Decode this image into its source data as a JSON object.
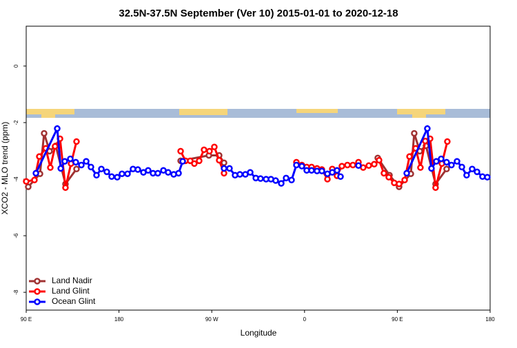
{
  "chart_data": {
    "type": "line",
    "title": "32.5N-37.5N September (Ver 10)   2015-01-01 to 2020-12-18",
    "x_label": "Longitude",
    "y_label": "XCO2 - MLO trend (ppm)",
    "xlim": [
      90,
      540
    ],
    "xticks": [
      {
        "value": 90,
        "label": "90 E"
      },
      180,
      {
        "value": 270,
        "label": "90 W"
      },
      {
        "value": 360,
        "label": "0"
      },
      {
        "value": 450,
        "label": "90 E"
      },
      {
        "value": 540,
        "label": "180"
      }
    ],
    "ylim": [
      -8.63,
      1.41
    ],
    "yticks": [
      0,
      -2,
      -4,
      -6,
      -8
    ],
    "legend": "bottom-left",
    "series": [
      {
        "name": "Land Nadir",
        "color": "#a03232",
        "x": [
          92,
          103.4,
          107.4,
          112.7,
          118.7,
          128.1,
          138.8,
          null,
          239.8,
          267.2,
          277.2,
          281.9,
          null,
          431.0,
          442.4,
          451.7,
          463.1,
          466.4,
          471.8,
          477.8,
          487.1,
          497.8
        ],
        "values": [
          -4.27,
          -3.81,
          -2.38,
          -3.01,
          -2.82,
          -4.17,
          -3.64,
          null,
          -3.35,
          -3.16,
          -3.16,
          -3.42,
          null,
          -3.25,
          -3.86,
          -4.27,
          -3.81,
          -2.38,
          -3.01,
          -2.82,
          -4.17,
          -3.64
        ]
      },
      {
        "name": "Land Glint",
        "color": "#ff0000",
        "x": [
          90,
          98,
          102.7,
          109,
          113.4,
          118,
          122.8,
          128.1,
          133.5,
          138.8,
          null,
          239.8,
          244.5,
          249.1,
          253.1,
          257.8,
          262.5,
          267.8,
          272.5,
          277.2,
          281.9,
          null,
          352.1,
          357.4,
          362.1,
          366.8,
          372.1,
          376.8,
          382.2,
          386.9,
          391.5,
          396.2,
          401.6,
          406.9,
          412.3,
          416.9,
          422.3,
          427.6,
          432.3,
          437.0,
          441.7,
          447.0,
          451.7,
          457.1,
          461.8,
          467.8,
          472.4,
          477.1,
          481.8,
          487.1,
          493.2,
          498.5
        ],
        "values": [
          -4.08,
          -4.03,
          -3.2,
          -2.91,
          -3.59,
          -2.84,
          -2.57,
          -4.3,
          -3.45,
          -2.67,
          null,
          -3.01,
          -3.35,
          -3.35,
          -3.45,
          -3.35,
          -2.96,
          -3.01,
          -2.86,
          -3.33,
          -3.79,
          null,
          -3.4,
          -3.5,
          -3.57,
          -3.57,
          -3.62,
          -3.66,
          -4.0,
          -3.64,
          -3.88,
          -3.54,
          -3.5,
          -3.5,
          -3.4,
          -3.59,
          -3.52,
          -3.47,
          -3.33,
          -3.79,
          -3.93,
          -4.13,
          -4.17,
          -4.03,
          -3.2,
          -2.91,
          -3.59,
          -2.65,
          -2.57,
          -4.3,
          -3.45,
          -2.67
        ]
      },
      {
        "name": "Ocean Glint",
        "color": "#0000ff",
        "x": [
          99.4,
          120.1,
          123.5,
          127.4,
          132.8,
          138.1,
          143.5,
          148.2,
          152.8,
          158.2,
          162.9,
          168.2,
          172.9,
          178.3,
          182.9,
          188.3,
          193.6,
          198.3,
          203.7,
          208.3,
          213.0,
          217.7,
          223.1,
          227.7,
          233.1,
          237.8,
          241.8,
          null,
          281.9,
          287.2,
          292.6,
          297.3,
          302.6,
          307.3,
          312.7,
          317.3,
          322.7,
          327.4,
          332.0,
          337.4,
          342.1,
          347.4,
          352.1,
          357.4,
          362.1,
          366.8,
          372.1,
          376.8,
          382.2,
          386.9,
          391.5,
          394.9,
          null,
          412.3,
          null,
          459.1,
          479.1,
          483.1,
          487.8,
          492.5,
          497.8,
          502.5,
          507.9,
          512.6,
          517.2,
          522.6,
          527.3,
          532.6,
          537.3
        ],
        "values": [
          -3.79,
          -2.21,
          -3.62,
          -3.37,
          -3.28,
          -3.4,
          -3.5,
          -3.37,
          -3.57,
          -3.86,
          -3.64,
          -3.74,
          -3.91,
          -3.93,
          -3.81,
          -3.81,
          -3.64,
          -3.66,
          -3.76,
          -3.69,
          -3.79,
          -3.79,
          -3.69,
          -3.76,
          -3.83,
          -3.79,
          -3.37,
          null,
          -3.62,
          -3.62,
          -3.86,
          -3.83,
          -3.83,
          -3.76,
          -3.96,
          -3.98,
          -4.0,
          -4.0,
          -4.05,
          -4.15,
          -3.96,
          -4.03,
          -3.5,
          -3.54,
          -3.69,
          -3.69,
          -3.71,
          -3.71,
          -3.81,
          -3.76,
          -3.69,
          -3.91,
          null,
          -3.52,
          null,
          -3.79,
          -2.21,
          -3.62,
          -3.37,
          -3.28,
          -3.4,
          -3.5,
          -3.37,
          -3.57,
          -3.86,
          -3.64,
          -3.74,
          -3.91,
          -3.93
        ]
      }
    ]
  }
}
